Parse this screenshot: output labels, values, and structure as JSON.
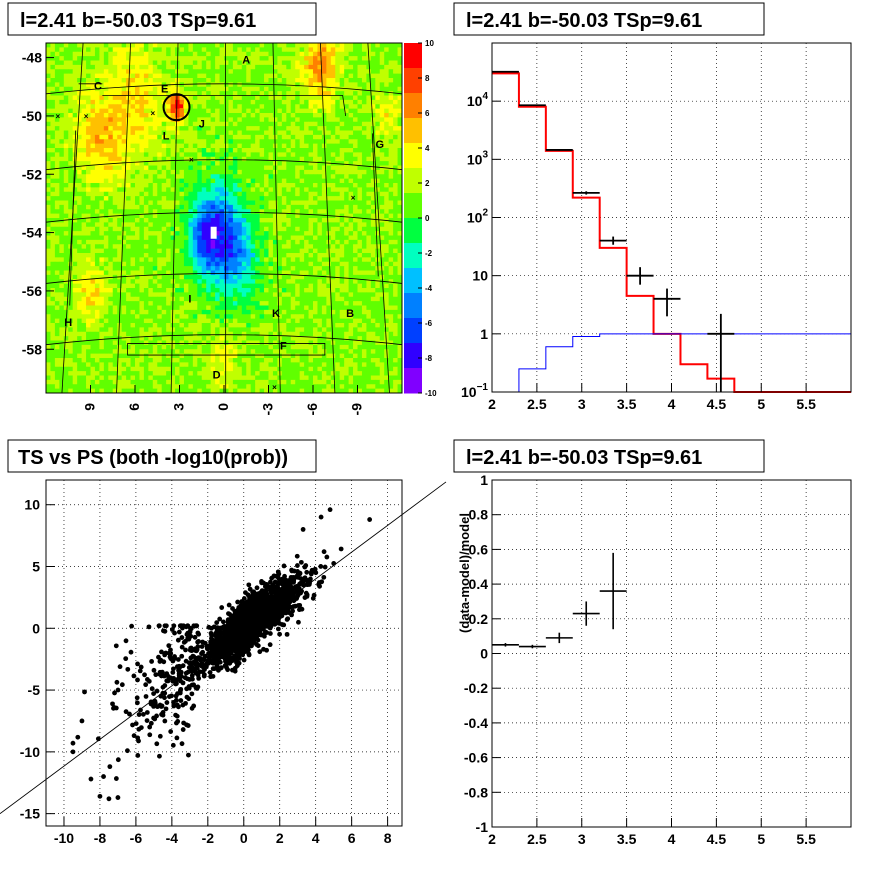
{
  "chart_data": [
    {
      "type": "heatmap",
      "title": "l=2.41 b=-50.03 TSp=9.61",
      "xlim": [
        12,
        -12
      ],
      "ylim": [
        -59.5,
        -47.5
      ],
      "x_ticks": [
        "9",
        "6",
        "3",
        "0",
        "-3",
        "-6",
        "-9"
      ],
      "y_ticks": [
        "-48",
        "-50",
        "-52",
        "-54",
        "-56",
        "-58"
      ],
      "zlim": [
        -10,
        10
      ],
      "z_ticks": [
        "-10",
        "-8",
        "-6",
        "-4",
        "-2",
        "0",
        "2",
        "4",
        "6",
        "8",
        "10"
      ],
      "colorbar": [
        "#8000ff",
        "#3000ff",
        "#0040ff",
        "#0080ff",
        "#00c0ff",
        "#00ffc0",
        "#00ff40",
        "#60ff00",
        "#c0ff00",
        "#ffff00",
        "#ffc000",
        "#ff8000",
        "#ff4000",
        "#ff0000"
      ],
      "region_labels": [
        {
          "t": "A",
          "x": -1.5,
          "y": -48.2
        },
        {
          "t": "C",
          "x": 8.5,
          "y": -49.1
        },
        {
          "t": "E",
          "x": 4.0,
          "y": -49.2
        },
        {
          "t": "J",
          "x": 1.5,
          "y": -50.4
        },
        {
          "t": "L",
          "x": 3.9,
          "y": -50.8
        },
        {
          "t": "G",
          "x": -10.5,
          "y": -51.1
        },
        {
          "t": "I",
          "x": 2.3,
          "y": -56.4
        },
        {
          "t": "K",
          "x": -3.5,
          "y": -56.9
        },
        {
          "t": "B",
          "x": -8.5,
          "y": -56.9
        },
        {
          "t": "H",
          "x": 10.5,
          "y": -57.2
        },
        {
          "t": "F",
          "x": -4.0,
          "y": -58.0
        },
        {
          "t": "D",
          "x": 0.5,
          "y": -59.0
        }
      ],
      "source_circle": {
        "x": 3.2,
        "y": -49.7
      }
    },
    {
      "type": "line",
      "title": "l=2.41 b=-50.03 TSp=9.61",
      "xlim": [
        2,
        6
      ],
      "ylim": [
        0.1,
        100000
      ],
      "yscale": "log",
      "x_ticks": [
        "2",
        "2.5",
        "3",
        "3.5",
        "4",
        "4.5",
        "5",
        "5.5"
      ],
      "y_ticks": [
        "10^-1",
        "1",
        "10",
        "10^2",
        "10^3",
        "10^4"
      ],
      "series": [
        {
          "color": "#ff0000",
          "edges": [
            2.0,
            2.3,
            2.6,
            2.9,
            3.2,
            3.5,
            3.8,
            4.1,
            4.4,
            4.7,
            6.0
          ],
          "values": [
            30000,
            8000,
            1400,
            220,
            30,
            4.5,
            1.0,
            0.3,
            0.17,
            0.1
          ]
        },
        {
          "color": "#0000ff",
          "edges": [
            2.0,
            2.3,
            2.6,
            2.9,
            3.2,
            6.0
          ],
          "values": [
            0.08,
            0.25,
            0.6,
            0.9,
            1.0
          ]
        },
        {
          "color": "#000000",
          "points": [
            {
              "x": 2.15,
              "y": 32000,
              "lo": 31800,
              "hi": 32200,
              "xe": 0.15
            },
            {
              "x": 2.45,
              "y": 8500,
              "lo": 8400,
              "hi": 8600,
              "xe": 0.15
            },
            {
              "x": 2.75,
              "y": 1450,
              "lo": 1410,
              "hi": 1490,
              "xe": 0.15
            },
            {
              "x": 3.05,
              "y": 265,
              "lo": 248,
              "hi": 282,
              "xe": 0.15
            },
            {
              "x": 3.35,
              "y": 40,
              "lo": 34,
              "hi": 47,
              "xe": 0.15
            },
            {
              "x": 3.65,
              "y": 10,
              "lo": 7,
              "hi": 14,
              "xe": 0.15
            },
            {
              "x": 3.95,
              "y": 4,
              "lo": 2,
              "hi": 6,
              "xe": 0.15
            },
            {
              "x": 4.55,
              "y": 1.0,
              "lo": 0.1,
              "hi": 2.2,
              "xe": 0.15
            }
          ]
        }
      ]
    },
    {
      "type": "scatter",
      "title": "TS vs PS (both -log10(prob))",
      "xlim": [
        -11,
        8.8
      ],
      "ylim": [
        -16,
        12
      ],
      "x_ticks": [
        "-10",
        "-8",
        "-6",
        "-4",
        "-2",
        "0",
        "2",
        "4",
        "6",
        "8"
      ],
      "y_ticks": [
        "-15",
        "-10",
        "-5",
        "0",
        "5",
        "10"
      ],
      "line": {
        "x1": -11,
        "y1": -12.9,
        "x2": 8.8,
        "y2": 9.9
      },
      "outliers": [
        [
          7.0,
          8.8
        ],
        [
          4.8,
          9.6
        ],
        [
          4.3,
          9.0
        ],
        [
          3.3,
          8.0
        ],
        [
          -8.0,
          -13.6
        ],
        [
          -7.5,
          -13.8
        ],
        [
          -7.0,
          -13.7
        ],
        [
          -7.8,
          -12.0
        ],
        [
          -8.5,
          -12.2
        ],
        [
          -9.5,
          -10.0
        ],
        [
          -9.5,
          -9.3
        ],
        [
          -9.0,
          -7.5
        ]
      ]
    },
    {
      "type": "scatter",
      "title": "l=2.41 b=-50.03 TSp=9.61",
      "ylabel": "(data-model)/model",
      "xlim": [
        2,
        6
      ],
      "ylim": [
        -1,
        1
      ],
      "x_ticks": [
        "2",
        "2.5",
        "3",
        "3.5",
        "4",
        "4.5",
        "5",
        "5.5"
      ],
      "y_ticks": [
        "-1",
        "-0.8",
        "-0.6",
        "-0.4",
        "-0.2",
        "0",
        "0.2",
        "0.4",
        "0.6",
        "0.8",
        "1"
      ],
      "points": [
        {
          "x": 2.15,
          "y": 0.05,
          "lo": 0.04,
          "hi": 0.06,
          "xe": 0.15
        },
        {
          "x": 2.45,
          "y": 0.04,
          "lo": 0.03,
          "hi": 0.05,
          "xe": 0.15
        },
        {
          "x": 2.75,
          "y": 0.09,
          "lo": 0.06,
          "hi": 0.12,
          "xe": 0.15
        },
        {
          "x": 3.05,
          "y": 0.23,
          "lo": 0.16,
          "hi": 0.3,
          "xe": 0.15
        },
        {
          "x": 3.35,
          "y": 0.36,
          "lo": 0.14,
          "hi": 0.58,
          "xe": 0.15
        }
      ]
    }
  ]
}
